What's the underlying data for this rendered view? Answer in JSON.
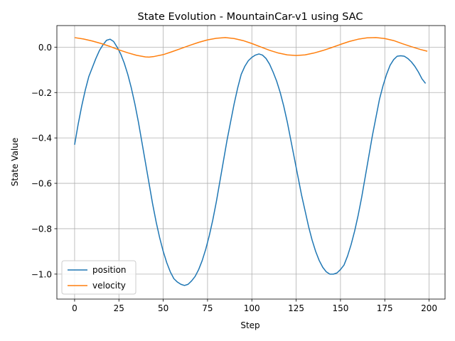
{
  "chart_data": {
    "type": "line",
    "title": "State Evolution - MountainCar-v1 using SAC",
    "xlabel": "Step",
    "ylabel": "State Value",
    "xlim": [
      -10,
      209
    ],
    "ylim": [
      -1.11,
      0.095
    ],
    "xticks": [
      0,
      25,
      50,
      75,
      100,
      125,
      150,
      175,
      200
    ],
    "yticks": [
      0.0,
      -0.2,
      -0.4,
      -0.6,
      -0.8,
      -1.0
    ],
    "ytick_labels": [
      "0.0",
      "−0.2",
      "−0.4",
      "−0.6",
      "−0.8",
      "−1.0"
    ],
    "grid": true,
    "legend_position": "lower-left",
    "series": [
      {
        "name": "position",
        "color": "#1f77b4",
        "points": [
          [
            0,
            -0.43
          ],
          [
            2,
            -0.34
          ],
          [
            4,
            -0.26
          ],
          [
            6,
            -0.19
          ],
          [
            8,
            -0.13
          ],
          [
            10,
            -0.09
          ],
          [
            12,
            -0.05
          ],
          [
            14,
            -0.015
          ],
          [
            16,
            0.01
          ],
          [
            18,
            0.03
          ],
          [
            20,
            0.035
          ],
          [
            22,
            0.025
          ],
          [
            24,
            0.0
          ],
          [
            26,
            -0.03
          ],
          [
            28,
            -0.07
          ],
          [
            30,
            -0.12
          ],
          [
            32,
            -0.18
          ],
          [
            34,
            -0.25
          ],
          [
            36,
            -0.33
          ],
          [
            38,
            -0.42
          ],
          [
            40,
            -0.51
          ],
          [
            42,
            -0.6
          ],
          [
            44,
            -0.69
          ],
          [
            46,
            -0.77
          ],
          [
            48,
            -0.84
          ],
          [
            50,
            -0.9
          ],
          [
            52,
            -0.95
          ],
          [
            54,
            -0.99
          ],
          [
            56,
            -1.02
          ],
          [
            58,
            -1.035
          ],
          [
            60,
            -1.045
          ],
          [
            62,
            -1.05
          ],
          [
            64,
            -1.045
          ],
          [
            66,
            -1.03
          ],
          [
            68,
            -1.01
          ],
          [
            70,
            -0.98
          ],
          [
            72,
            -0.94
          ],
          [
            74,
            -0.89
          ],
          [
            76,
            -0.83
          ],
          [
            78,
            -0.76
          ],
          [
            80,
            -0.68
          ],
          [
            82,
            -0.59
          ],
          [
            84,
            -0.5
          ],
          [
            86,
            -0.41
          ],
          [
            88,
            -0.33
          ],
          [
            90,
            -0.25
          ],
          [
            92,
            -0.18
          ],
          [
            94,
            -0.12
          ],
          [
            96,
            -0.085
          ],
          [
            98,
            -0.06
          ],
          [
            100,
            -0.045
          ],
          [
            102,
            -0.035
          ],
          [
            104,
            -0.03
          ],
          [
            106,
            -0.035
          ],
          [
            108,
            -0.05
          ],
          [
            110,
            -0.075
          ],
          [
            112,
            -0.11
          ],
          [
            114,
            -0.15
          ],
          [
            116,
            -0.2
          ],
          [
            118,
            -0.26
          ],
          [
            120,
            -0.33
          ],
          [
            122,
            -0.41
          ],
          [
            124,
            -0.49
          ],
          [
            126,
            -0.57
          ],
          [
            128,
            -0.65
          ],
          [
            130,
            -0.72
          ],
          [
            132,
            -0.79
          ],
          [
            134,
            -0.85
          ],
          [
            136,
            -0.9
          ],
          [
            138,
            -0.94
          ],
          [
            140,
            -0.97
          ],
          [
            142,
            -0.99
          ],
          [
            144,
            -1.0
          ],
          [
            146,
            -1.0
          ],
          [
            148,
            -0.995
          ],
          [
            150,
            -0.98
          ],
          [
            152,
            -0.96
          ],
          [
            154,
            -0.92
          ],
          [
            156,
            -0.87
          ],
          [
            158,
            -0.81
          ],
          [
            160,
            -0.74
          ],
          [
            162,
            -0.66
          ],
          [
            164,
            -0.57
          ],
          [
            166,
            -0.48
          ],
          [
            168,
            -0.39
          ],
          [
            170,
            -0.31
          ],
          [
            172,
            -0.23
          ],
          [
            174,
            -0.17
          ],
          [
            176,
            -0.12
          ],
          [
            178,
            -0.08
          ],
          [
            180,
            -0.055
          ],
          [
            182,
            -0.04
          ],
          [
            184,
            -0.038
          ],
          [
            186,
            -0.04
          ],
          [
            188,
            -0.05
          ],
          [
            190,
            -0.065
          ],
          [
            192,
            -0.085
          ],
          [
            194,
            -0.11
          ],
          [
            196,
            -0.14
          ],
          [
            198,
            -0.16
          ]
        ]
      },
      {
        "name": "velocity",
        "color": "#ff7f0e",
        "points": [
          [
            0,
            0.042
          ],
          [
            5,
            0.036
          ],
          [
            10,
            0.027
          ],
          [
            15,
            0.016
          ],
          [
            20,
            0.003
          ],
          [
            25,
            -0.012
          ],
          [
            30,
            -0.025
          ],
          [
            35,
            -0.036
          ],
          [
            40,
            -0.043
          ],
          [
            42,
            -0.044
          ],
          [
            45,
            -0.041
          ],
          [
            50,
            -0.033
          ],
          [
            55,
            -0.02
          ],
          [
            60,
            -0.006
          ],
          [
            65,
            0.008
          ],
          [
            70,
            0.021
          ],
          [
            75,
            0.032
          ],
          [
            80,
            0.039
          ],
          [
            85,
            0.042
          ],
          [
            90,
            0.038
          ],
          [
            95,
            0.029
          ],
          [
            100,
            0.016
          ],
          [
            105,
            0.001
          ],
          [
            110,
            -0.014
          ],
          [
            115,
            -0.026
          ],
          [
            120,
            -0.034
          ],
          [
            125,
            -0.037
          ],
          [
            130,
            -0.034
          ],
          [
            135,
            -0.026
          ],
          [
            140,
            -0.015
          ],
          [
            145,
            -0.002
          ],
          [
            150,
            0.012
          ],
          [
            155,
            0.025
          ],
          [
            160,
            0.035
          ],
          [
            165,
            0.041
          ],
          [
            170,
            0.042
          ],
          [
            175,
            0.038
          ],
          [
            180,
            0.029
          ],
          [
            185,
            0.015
          ],
          [
            190,
            0.002
          ],
          [
            195,
            -0.01
          ],
          [
            199,
            -0.018
          ]
        ]
      }
    ]
  }
}
